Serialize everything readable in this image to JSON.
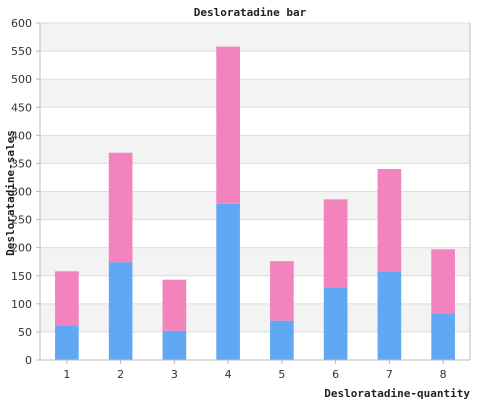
{
  "chart_data": {
    "type": "bar",
    "stacked": true,
    "title": "Desloratadine bar",
    "xlabel": "Desloratadine-quantity",
    "ylabel": "Desloratadine-sales",
    "categories": [
      "1",
      "2",
      "3",
      "4",
      "5",
      "6",
      "7",
      "8"
    ],
    "series": [
      {
        "values": [
          62,
          174,
          52,
          278,
          70,
          129,
          158,
          83
        ]
      },
      {
        "values": [
          96,
          195,
          91,
          280,
          106,
          157,
          182,
          114
        ]
      }
    ],
    "totals": [
      158,
      369,
      143,
      558,
      176,
      286,
      340,
      197
    ],
    "ylim": [
      0,
      600
    ],
    "yticks": [
      0,
      50,
      100,
      150,
      200,
      250,
      300,
      350,
      400,
      450,
      500,
      550,
      600
    ],
    "grid": true,
    "legend": "none",
    "colors": {
      "series": [
        "#61a8f4",
        "#f383bc"
      ],
      "band": "#f3f3f3",
      "gridline": "#dddddd",
      "axis": "#bbbbbb"
    }
  }
}
